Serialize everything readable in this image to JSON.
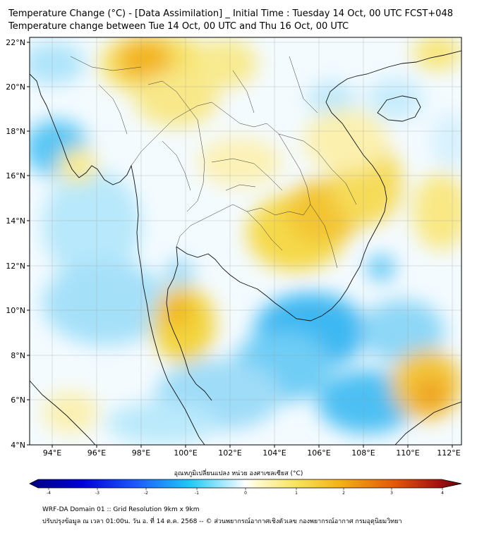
{
  "title_line1": "Temperature Change (°C) - [Data Assimilation] _ Initial Time : Tuesday 14 Oct, 00 UTC FCST+048",
  "title_line2": "Temperature change between Tue 14 Oct, 00 UTC and Thu 16 Oct, 00 UTC",
  "lat_labels": [
    "22°N",
    "20°N",
    "18°N",
    "16°N",
    "14°N",
    "12°N",
    "10°N",
    "8°N",
    "6°N",
    "4°N"
  ],
  "lon_labels": [
    "94°E",
    "96°E",
    "98°E",
    "100°E",
    "102°E",
    "104°E",
    "106°E",
    "108°E",
    "110°E",
    "112°E"
  ],
  "colorbar": {
    "title": "อุณหภูมิเปลี่ยนแปลง หน่วย องศาเซลเซียส (°C)",
    "ticks": [
      "-4",
      "-3",
      "-2",
      "-1",
      "0",
      "1",
      "2",
      "3",
      "4"
    ],
    "range": [
      -4,
      4
    ]
  },
  "footer_line1": "WRF-DA Domain 01 :: Grid Resolution 9km x 9km",
  "footer_line2": "ปรับปรุงข้อมูล ณ เวลา 01:00น. วัน อ. ที่ 14 ต.ค. 2568 -- © ส่วนพยากรณ์อากาศเชิงตัวเลข กองพยากรณ์อากาศ กรมอุตุนิยมวิทยา",
  "colors": {
    "cold": "#2fb4f0",
    "neutral": "#ffffff",
    "warm_yellow": "#f5e76a",
    "warm_orange": "#f1b30c",
    "hot": "#d5500a",
    "coast": "#000000"
  }
}
